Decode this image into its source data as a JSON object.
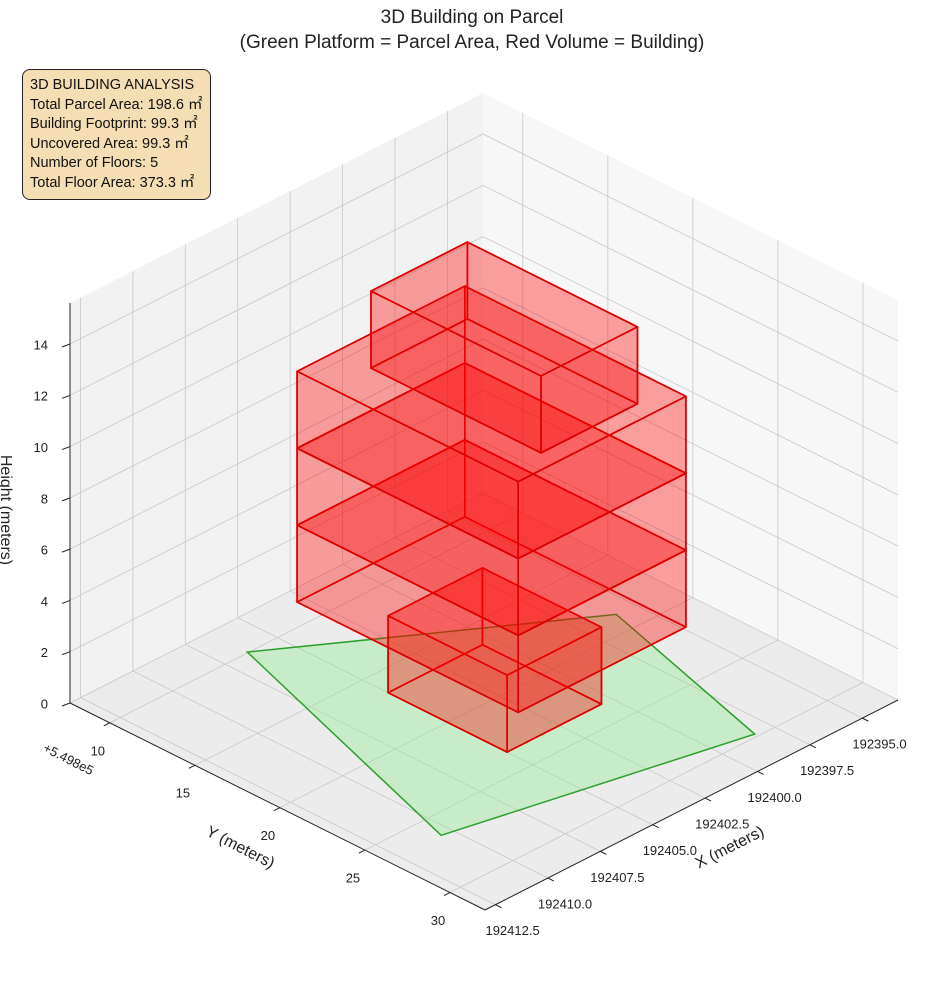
{
  "chart_data": {
    "type": "bar3d",
    "title": "3D Building on Parcel",
    "subtitle": "(Green Platform = Parcel Area, Red Volume = Building)",
    "annotation": [
      "3D BUILDING ANALYSIS",
      "Total Parcel Area: 198.6 ㎡",
      "Building Footprint: 99.3 ㎡",
      "Uncovered Area: 99.3 ㎡",
      "Number of Floors: 5",
      "Total Floor Area: 373.3 ㎡"
    ],
    "xlabel": "X (meters)",
    "ylabel": "Y (meters)",
    "zlabel": "Height (meters)",
    "y_offset_label": "+5.498e5",
    "xlim": [
      192393.3,
      192413.0
    ],
    "xticks": [
      {
        "value": 192395,
        "label": "192395.0"
      },
      {
        "value": 192397.5,
        "label": "192397.5"
      },
      {
        "value": 192400,
        "label": "192400.0"
      },
      {
        "value": 192402.5,
        "label": "192402.5"
      },
      {
        "value": 192405,
        "label": "192405.0"
      },
      {
        "value": 192407.5,
        "label": "192407.5"
      },
      {
        "value": 192410,
        "label": "192410.0"
      },
      {
        "value": 192412.5,
        "label": "192412.5"
      }
    ],
    "ylim": [
      7.66,
      32.06
    ],
    "yticks": [
      10,
      15,
      20,
      25,
      30
    ],
    "zlim": [
      0,
      15.6
    ],
    "zticks": [
      0,
      2,
      4,
      6,
      8,
      10,
      12,
      14
    ],
    "grid": true,
    "parcel": {
      "color": "#2ca02c",
      "fill": "#90ee90",
      "x": [
        192406.4,
        192395.9,
        192398.3,
        192410.5
      ],
      "y": [
        9.95,
        18.7,
        29.8,
        26.4
      ]
    },
    "building": {
      "color": "#dd0000",
      "fill": "#ff0000",
      "boxes": [
        {
          "x": [
            192400.5,
            192405.0
          ],
          "y": [
            16.5,
            23.5
          ],
          "z": [
            0,
            3
          ]
        },
        {
          "x": [
            192398.5,
            192406.5
          ],
          "y": [
            13,
            26
          ],
          "z": [
            3,
            6
          ]
        },
        {
          "x": [
            192398.5,
            192406.5
          ],
          "y": [
            13,
            26
          ],
          "z": [
            6,
            9
          ]
        },
        {
          "x": [
            192398.5,
            192406.5
          ],
          "y": [
            13,
            26
          ],
          "z": [
            9,
            12
          ]
        },
        {
          "x": [
            192400,
            192404.6
          ],
          "y": [
            15,
            25
          ],
          "z": [
            12,
            15
          ]
        }
      ]
    }
  }
}
